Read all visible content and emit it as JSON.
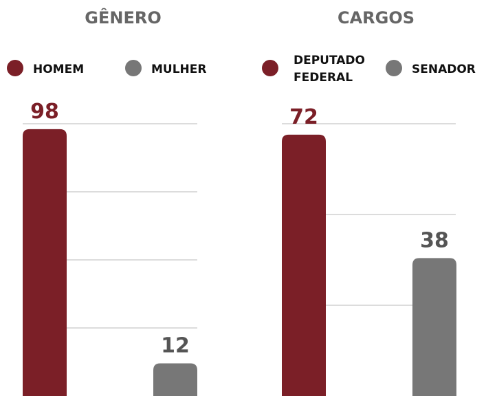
{
  "chart_data": [
    {
      "type": "bar",
      "title": "GÊNERO",
      "categories": [
        "HOMEM",
        "MULHER"
      ],
      "values": [
        98,
        12
      ],
      "colors": [
        "#7b1f27",
        "#777777"
      ],
      "value_label_colors": [
        "#7b1f27",
        "#555555"
      ],
      "ylim": [
        0,
        100
      ],
      "yticks": [
        25,
        50,
        75,
        100
      ],
      "grid": true
    },
    {
      "type": "bar",
      "title": "CARGOS",
      "categories": [
        "DEPUTADO FEDERAL",
        "SENADOR"
      ],
      "values": [
        72,
        38
      ],
      "colors": [
        "#7b1f27",
        "#777777"
      ],
      "value_label_colors": [
        "#7b1f27",
        "#555555"
      ],
      "ylim": [
        0,
        75
      ],
      "yticks": [
        25,
        50,
        75
      ],
      "grid": true
    }
  ]
}
